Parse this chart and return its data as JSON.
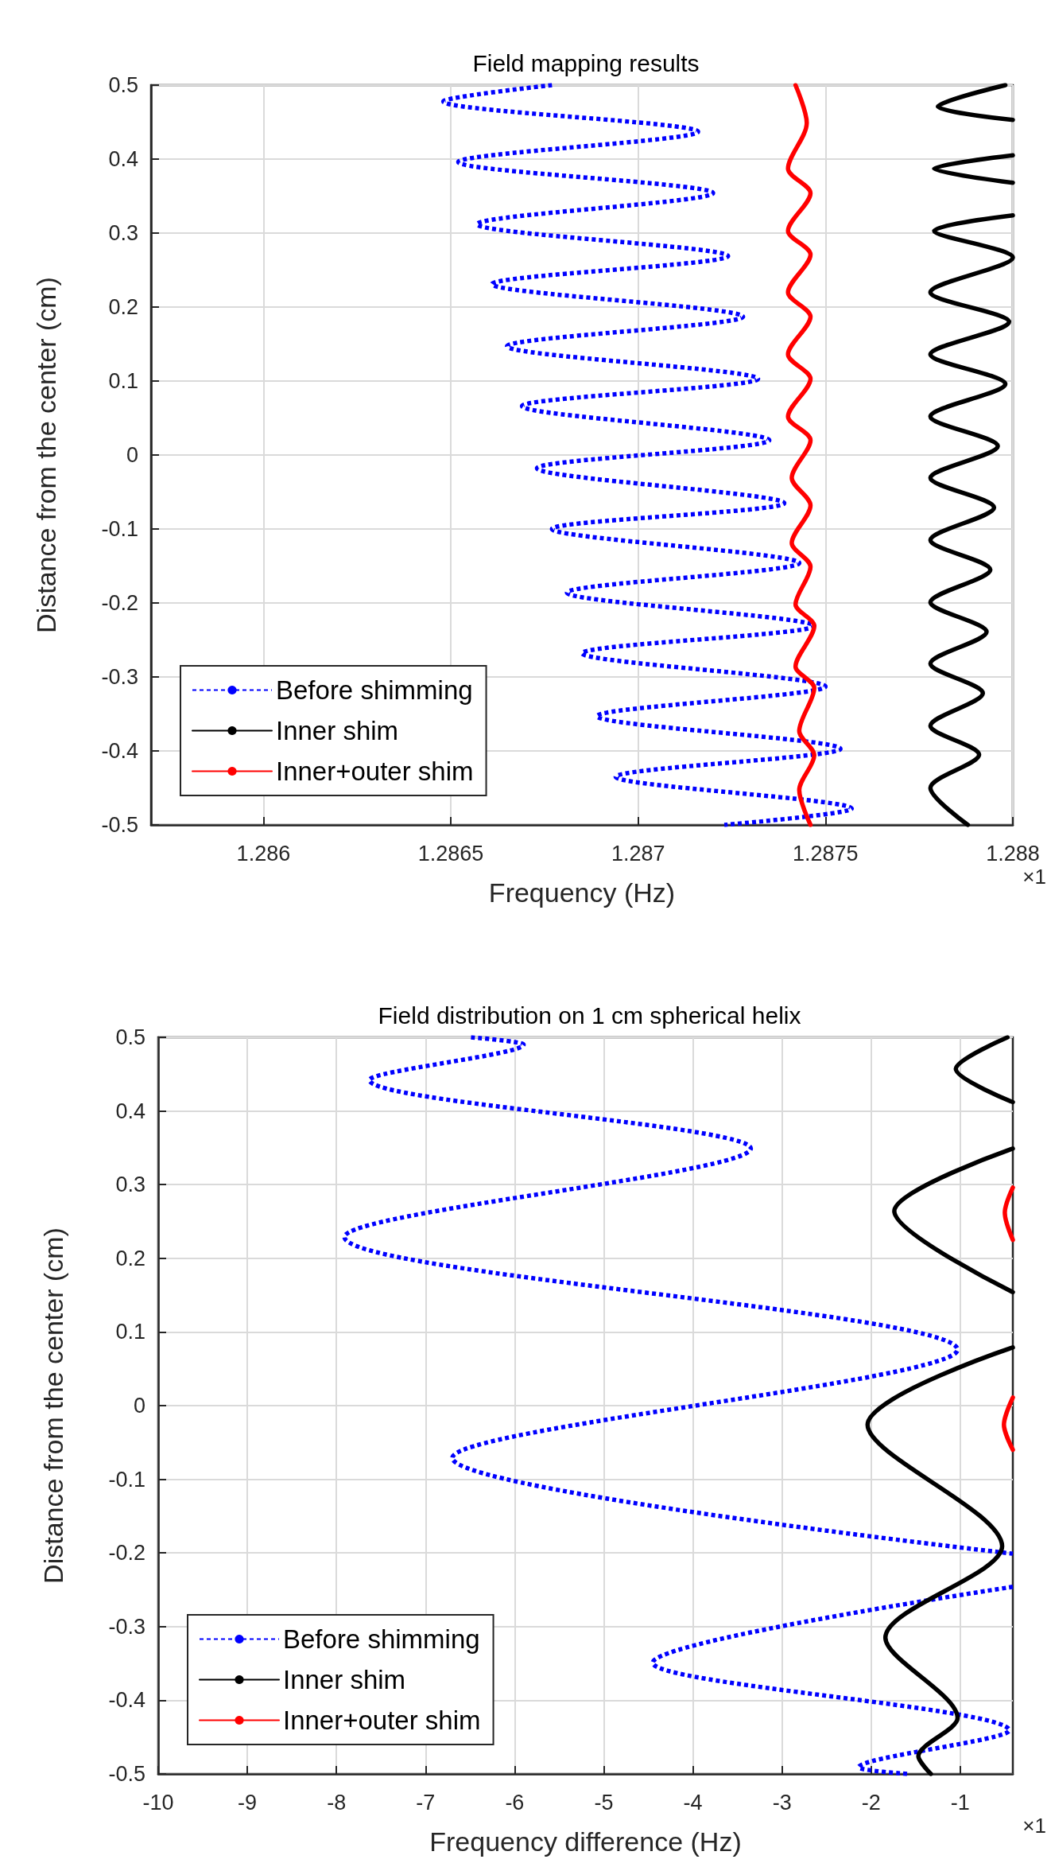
{
  "chart_data": [
    {
      "type": "line",
      "title": "Field mapping results",
      "xlabel": "Frequency (Hz)",
      "ylabel": "Distance from the center (cm)",
      "annotations": [
        "×1"
      ],
      "xlim": [
        1.2857,
        1.288
      ],
      "xticks": [
        1.286,
        1.2865,
        1.287,
        1.2875,
        1.288
      ],
      "ylim": [
        -0.5,
        0.5
      ],
      "yticks": [
        -0.5,
        -0.4,
        -0.3,
        -0.2,
        -0.1,
        0,
        0.1,
        0.2,
        0.3,
        0.4,
        0.5
      ],
      "grid": true,
      "legend": "bottom left",
      "marker": "none",
      "series": [
        {
          "name": "Before shimming",
          "color": "#0000ff",
          "line_style": "dotted",
          "x": [
            1.28677,
            1.28648,
            1.28716,
            1.28652,
            1.2872,
            1.28657,
            1.28724,
            1.28661,
            1.28728,
            1.28665,
            1.28732,
            1.28669,
            1.28735,
            1.28673,
            1.28739,
            1.28677,
            1.28743,
            1.28681,
            1.28747,
            1.28685,
            1.2875,
            1.28689,
            1.28754,
            1.28694,
            1.28757,
            1.28723
          ],
          "values": [
            0.5,
            0.478,
            0.437,
            0.396,
            0.354,
            0.312,
            0.269,
            0.231,
            0.187,
            0.147,
            0.103,
            0.066,
            0.02,
            -0.018,
            -0.065,
            -0.1,
            -0.146,
            -0.186,
            -0.231,
            -0.268,
            -0.313,
            -0.353,
            -0.397,
            -0.435,
            -0.478,
            -0.5
          ]
        },
        {
          "name": "Inner shim",
          "color": "#000000",
          "line_style": "solid",
          "x": [
            1.28798,
            1.2878,
            1.288,
            null,
            1.288,
            1.28779,
            1.288,
            null,
            1.288,
            1.28779,
            1.288,
            1.28778,
            1.28799,
            1.28778,
            1.28798,
            1.28778,
            1.28796,
            1.28778,
            1.28795,
            1.28778,
            1.28794,
            1.28778,
            1.28793,
            1.28778,
            1.28792,
            1.28778,
            1.28791,
            1.28778,
            1.28788
          ],
          "values": [
            0.5,
            0.471,
            0.453,
            null,
            0.405,
            0.387,
            0.368,
            null,
            0.324,
            0.303,
            0.267,
            0.22,
            0.18,
            0.136,
            0.096,
            0.052,
            0.012,
            -0.031,
            -0.071,
            -0.115,
            -0.155,
            -0.199,
            -0.239,
            -0.282,
            -0.322,
            -0.366,
            -0.405,
            -0.45,
            -0.5
          ]
        },
        {
          "name": "Inner+outer shim",
          "color": "#ff0000",
          "line_style": "solid",
          "x": [
            1.28742,
            1.28745,
            1.2874,
            1.28746,
            1.2874,
            1.28746,
            1.2874,
            1.28746,
            1.2874,
            1.28746,
            1.2874,
            1.28746,
            1.28741,
            1.28746,
            1.28741,
            1.28746,
            1.28742,
            1.28747,
            1.28742,
            1.28747,
            1.28743,
            1.28747,
            1.28743,
            1.28746
          ],
          "values": [
            0.5,
            0.449,
            0.387,
            0.354,
            0.303,
            0.271,
            0.22,
            0.187,
            0.136,
            0.103,
            0.052,
            0.02,
            -0.031,
            -0.068,
            -0.119,
            -0.151,
            -0.202,
            -0.231,
            -0.286,
            -0.315,
            -0.373,
            -0.406,
            -0.453,
            -0.5
          ]
        }
      ]
    },
    {
      "type": "line",
      "title": "Field distribution on 1 cm spherical helix",
      "xlabel": "Frequency difference (Hz)",
      "ylabel": "Distance from the center (cm)",
      "annotations": [
        "×1"
      ],
      "xlim": [
        -10,
        -0.41
      ],
      "xticks": [
        -10,
        -9,
        -8,
        -7,
        -6,
        -5,
        -4,
        -3,
        -2,
        -1
      ],
      "ylim": [
        -0.5,
        0.5
      ],
      "yticks": [
        -0.5,
        -0.4,
        -0.3,
        -0.2,
        -0.1,
        0,
        0.1,
        0.2,
        0.3,
        0.4,
        0.5
      ],
      "grid": true,
      "legend": "bottom left",
      "marker": "none",
      "series": [
        {
          "name": "Before shimming",
          "color": "#0000ff",
          "line_style": "dotted",
          "x": [
            -6.49,
            -5.9,
            -7.63,
            -3.35,
            -7.91,
            -1.03,
            -6.7,
            -0.41,
            null,
            -0.41,
            -4.45,
            -0.45,
            -2.14,
            -1.59
          ],
          "values": [
            0.5,
            0.49,
            0.442,
            0.349,
            0.229,
            0.076,
            -0.071,
            -0.201,
            null,
            -0.246,
            -0.349,
            -0.441,
            -0.491,
            -0.5
          ]
        },
        {
          "name": "Inner shim",
          "color": "#000000",
          "line_style": "solid",
          "x": [
            -0.47,
            -1.05,
            -0.41,
            null,
            -0.41,
            -1.74,
            -0.41,
            null,
            -0.41,
            -2.04,
            -0.53,
            -1.84,
            -1.03,
            -1.47,
            -1.33
          ],
          "values": [
            0.5,
            0.457,
            0.412,
            null,
            0.349,
            0.264,
            0.154,
            null,
            0.079,
            -0.026,
            -0.191,
            -0.315,
            -0.424,
            -0.476,
            -0.5
          ]
        },
        {
          "name": "Inner+outer shim",
          "color": "#ff0000",
          "line_style": "solid",
          "x": [
            -0.41,
            -0.5,
            -0.41,
            null,
            -0.41,
            -0.51,
            -0.41
          ],
          "values": [
            0.296,
            0.262,
            0.225,
            null,
            0.011,
            -0.026,
            -0.06
          ]
        }
      ]
    }
  ]
}
